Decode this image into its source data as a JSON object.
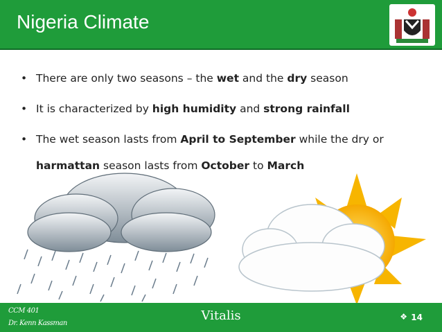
{
  "header": {
    "title": "Nigeria Climate"
  },
  "bullets": [
    {
      "segments": [
        {
          "text": "There are only two seasons – the ",
          "bold": false
        },
        {
          "text": "wet",
          "bold": true
        },
        {
          "text": " and the ",
          "bold": false
        },
        {
          "text": "dry",
          "bold": true
        },
        {
          "text": " season",
          "bold": false
        }
      ]
    },
    {
      "segments": [
        {
          "text": "It is characterized by ",
          "bold": false
        },
        {
          "text": "high humidity",
          "bold": true
        },
        {
          "text": " and ",
          "bold": false
        },
        {
          "text": "strong rainfall",
          "bold": true
        }
      ]
    },
    {
      "segments": [
        {
          "text": "The wet season lasts from ",
          "bold": false
        },
        {
          "text": "April to September",
          "bold": true
        },
        {
          "text": " while the dry or ",
          "bold": false
        },
        {
          "text": "harmattan",
          "bold": true
        },
        {
          "text": " season lasts from ",
          "bold": false
        },
        {
          "text": "October",
          "bold": true
        },
        {
          "text": " to ",
          "bold": false
        },
        {
          "text": "March",
          "bold": true
        }
      ]
    }
  ],
  "footer": {
    "course": "CCM 401",
    "author": "Dr. Kenn Kassman",
    "center": "Vitalis",
    "page": "14"
  }
}
